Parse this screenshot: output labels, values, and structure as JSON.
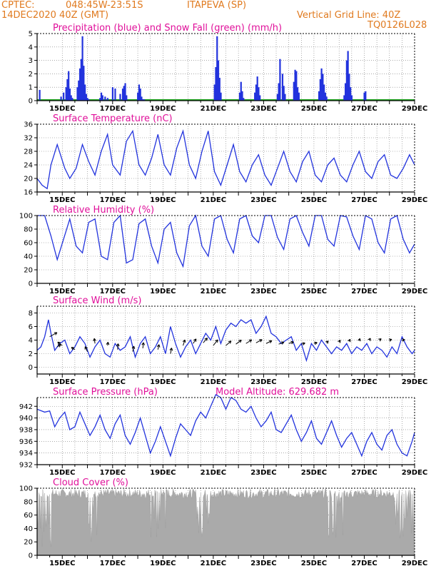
{
  "header": {
    "source": "CPTEC:",
    "coords": "048:45W-23:51S",
    "station": "ITAPEVA (SP)",
    "run": "14DEC2020 40Z (GMT)",
    "grid_note": "Vertical Grid Line: 40Z",
    "model": "TQ0126L028"
  },
  "colors": {
    "series": "#2233dd",
    "snow": "#22aa22",
    "cloud": "#aaaaaa",
    "title": "#e0109a",
    "header": "#e07a1f"
  },
  "x_axis": {
    "start": "14DEC",
    "end": "29DEC",
    "ticks": [
      "15DEC",
      "17DEC",
      "19DEC",
      "21DEC",
      "23DEC",
      "25DEC",
      "27DEC",
      "29DEC"
    ]
  },
  "chart_data": [
    {
      "id": "precip",
      "type": "bar",
      "title": "Precipitation (blue) and Snow Fall (green) (mm/h)",
      "ylim": [
        0,
        5
      ],
      "yticks": [
        "0",
        "1",
        "2",
        "3",
        "4",
        "5"
      ],
      "x_unit": "days since 14DEC 00Z (approx)",
      "x": [
        0.1,
        0.95,
        1.05,
        1.15,
        1.2,
        1.25,
        1.3,
        1.35,
        1.4,
        1.6,
        1.65,
        1.7,
        1.75,
        1.8,
        1.85,
        1.9,
        1.95,
        2.0,
        2.05,
        2.5,
        2.55,
        2.6,
        2.7,
        2.8,
        3.0,
        3.1,
        3.3,
        3.4,
        3.45,
        3.5,
        3.55,
        4.0,
        4.05,
        4.1,
        4.15,
        4.2,
        4.25,
        7.05,
        7.1,
        7.15,
        7.2,
        7.25,
        7.3,
        8.05,
        8.1,
        8.15,
        8.2,
        8.65,
        8.7,
        8.75,
        8.8,
        8.85,
        9.55,
        9.6,
        9.65,
        9.75,
        9.8,
        9.85,
        10.2,
        10.25,
        10.3,
        10.35,
        10.4,
        11.2,
        11.25,
        11.3,
        11.35,
        11.4,
        11.45,
        11.5,
        12.2,
        12.25,
        12.3,
        12.35,
        12.4,
        12.45,
        12.5,
        13.0,
        13.05
      ],
      "values": [
        0.8,
        0.3,
        0.6,
        1.0,
        1.6,
        2.2,
        0.9,
        0.4,
        0.2,
        1.0,
        1.5,
        2.4,
        3.1,
        4.8,
        2.6,
        1.2,
        0.5,
        0.2,
        0.1,
        0.2,
        0.6,
        0.4,
        0.3,
        0.2,
        1.0,
        0.9,
        0.5,
        0.9,
        1.1,
        1.3,
        0.4,
        0.6,
        1.2,
        0.9,
        0.3,
        0.1,
        0.1,
        1.2,
        2.5,
        4.8,
        3.0,
        1.7,
        0.6,
        0.6,
        1.4,
        0.7,
        0.2,
        0.6,
        1.2,
        1.8,
        1.0,
        0.4,
        0.5,
        1.3,
        3.1,
        2.0,
        1.1,
        0.5,
        1.4,
        2.3,
        2.2,
        1.0,
        0.6,
        0.7,
        1.6,
        2.4,
        2.0,
        1.2,
        0.6,
        0.3,
        0.4,
        1.3,
        3.0,
        3.7,
        2.0,
        1.0,
        0.4,
        0.6,
        0.7
      ],
      "snow": 0
    },
    {
      "id": "temp",
      "type": "line",
      "title": "Surface Temperature (nC)",
      "ylim": [
        16,
        36
      ],
      "yticks": [
        "16",
        "20",
        "24",
        "28",
        "32",
        "36"
      ],
      "x_unit": "days since 14DEC 00Z (approx)",
      "x": [
        0,
        0.2,
        0.4,
        0.55,
        0.8,
        1.1,
        1.3,
        1.55,
        1.8,
        2.05,
        2.3,
        2.55,
        2.8,
        3.0,
        3.3,
        3.55,
        3.8,
        4.05,
        4.3,
        4.55,
        4.8,
        5.05,
        5.3,
        5.55,
        5.8,
        6.05,
        6.3,
        6.55,
        6.8,
        7.05,
        7.3,
        7.55,
        7.8,
        8.05,
        8.3,
        8.55,
        8.8,
        9.05,
        9.3,
        9.55,
        9.8,
        10.05,
        10.3,
        10.55,
        10.8,
        11.05,
        11.3,
        11.55,
        11.8,
        12.05,
        12.3,
        12.55,
        12.8,
        13.05,
        13.3,
        13.55,
        13.8,
        14.05,
        14.3,
        14.55,
        14.8,
        15.0
      ],
      "values": [
        20,
        18,
        17,
        24,
        30,
        23,
        20,
        23,
        30,
        25,
        21,
        28,
        33,
        24,
        21,
        31,
        34,
        24,
        21,
        26,
        33,
        24,
        21,
        29,
        34,
        24,
        20,
        28,
        34,
        22,
        18,
        24,
        30,
        22,
        19,
        24,
        27,
        21,
        18,
        23,
        28,
        22,
        19,
        25,
        28,
        21,
        19,
        24,
        26,
        21,
        19,
        24,
        28,
        22,
        20,
        25,
        27,
        21,
        20,
        23,
        27,
        24
      ]
    },
    {
      "id": "rh",
      "type": "line",
      "title": "Relative Humidity (%)",
      "ylim": [
        0,
        100
      ],
      "yticks": [
        "0",
        "20",
        "40",
        "60",
        "80",
        "100"
      ],
      "x_unit": "days since 14DEC 00Z (approx)",
      "x": [
        0,
        0.3,
        0.55,
        0.8,
        1.05,
        1.3,
        1.55,
        1.8,
        2.05,
        2.3,
        2.55,
        2.8,
        3.05,
        3.3,
        3.55,
        3.8,
        4.05,
        4.3,
        4.55,
        4.8,
        5.05,
        5.3,
        5.55,
        5.8,
        6.05,
        6.3,
        6.55,
        6.8,
        7.05,
        7.3,
        7.55,
        7.8,
        8.05,
        8.3,
        8.55,
        8.8,
        9.05,
        9.3,
        9.55,
        9.8,
        10.05,
        10.3,
        10.55,
        10.8,
        11.05,
        11.3,
        11.55,
        11.8,
        12.05,
        12.3,
        12.55,
        12.8,
        13.05,
        13.3,
        13.55,
        13.8,
        14.05,
        14.3,
        14.55,
        14.8,
        15.0
      ],
      "values": [
        100,
        100,
        70,
        35,
        65,
        95,
        55,
        45,
        90,
        95,
        40,
        35,
        90,
        100,
        30,
        35,
        88,
        95,
        55,
        30,
        80,
        90,
        45,
        25,
        85,
        100,
        55,
        40,
        95,
        100,
        65,
        45,
        95,
        100,
        70,
        60,
        100,
        100,
        68,
        50,
        95,
        100,
        75,
        55,
        100,
        100,
        65,
        55,
        100,
        98,
        70,
        50,
        100,
        95,
        60,
        45,
        95,
        100,
        65,
        45,
        58
      ]
    },
    {
      "id": "wind",
      "type": "line",
      "title": "Surface Wind (m/s)",
      "ylim": [
        -1,
        9
      ],
      "yticks": [
        "0",
        "2",
        "4",
        "6",
        "8"
      ],
      "x_unit": "days since 14DEC 00Z (approx)",
      "x": [
        0,
        0.15,
        0.3,
        0.45,
        0.55,
        0.7,
        0.9,
        1.1,
        1.3,
        1.5,
        1.7,
        1.9,
        2.1,
        2.3,
        2.5,
        2.7,
        2.9,
        3.1,
        3.3,
        3.5,
        3.7,
        3.9,
        4.1,
        4.3,
        4.5,
        4.7,
        4.9,
        5.1,
        5.3,
        5.5,
        5.7,
        5.9,
        6.1,
        6.3,
        6.5,
        6.7,
        6.9,
        7.1,
        7.3,
        7.5,
        7.7,
        7.9,
        8.1,
        8.3,
        8.5,
        8.7,
        8.9,
        9.1,
        9.3,
        9.5,
        9.7,
        9.9,
        10.1,
        10.3,
        10.5,
        10.7,
        10.9,
        11.1,
        11.3,
        11.5,
        11.7,
        11.9,
        12.1,
        12.3,
        12.5,
        12.7,
        12.9,
        13.1,
        13.3,
        13.5,
        13.7,
        13.9,
        14.1,
        14.3,
        14.5,
        14.7,
        14.9,
        15.0
      ],
      "values": [
        2.5,
        3.0,
        4.5,
        7.0,
        5.0,
        2.5,
        3.5,
        4.0,
        2.0,
        3.0,
        4.5,
        3.5,
        1.5,
        3.0,
        4.0,
        2.0,
        1.5,
        3.5,
        2.5,
        3.0,
        4.5,
        1.5,
        3.5,
        4.5,
        2.0,
        3.0,
        4.5,
        2.0,
        6.0,
        3.5,
        1.5,
        3.0,
        4.0,
        2.0,
        3.5,
        5.0,
        4.0,
        6.0,
        3.5,
        5.5,
        6.5,
        6.0,
        7.0,
        6.5,
        7.0,
        5.0,
        6.0,
        7.5,
        5.0,
        4.5,
        3.5,
        4.0,
        4.5,
        2.5,
        3.5,
        1.0,
        3.5,
        2.5,
        4.0,
        3.0,
        2.0,
        3.0,
        2.5,
        3.5,
        2.0,
        3.0,
        2.5,
        3.5,
        2.0,
        3.0,
        2.5,
        1.5,
        3.0,
        2.0,
        4.5,
        3.0,
        2.0,
        2.5
      ],
      "arrows": [
        [
          0.5,
          4.5,
          3.2,
          1.8
        ],
        [
          0.8,
          3.0,
          1.5,
          1.0
        ],
        [
          1.0,
          3.2,
          -2.0,
          1.5
        ],
        [
          1.5,
          2.6,
          -1.5,
          1.0
        ],
        [
          2.0,
          2.3,
          -1.0,
          2.2
        ],
        [
          2.3,
          3.5,
          -0.3,
          2.2
        ],
        [
          2.8,
          3.2,
          0.2,
          1.5
        ],
        [
          3.2,
          2.6,
          0.2,
          2.6
        ],
        [
          3.8,
          2.3,
          0.5,
          2.4
        ],
        [
          4.2,
          2.8,
          0.3,
          2.5
        ],
        [
          4.8,
          2.6,
          0.5,
          2.2
        ],
        [
          5.3,
          2.0,
          0.5,
          2.5
        ],
        [
          5.8,
          3.2,
          0.8,
          2.5
        ],
        [
          6.2,
          3.5,
          1.3,
          2.0
        ],
        [
          6.6,
          3.6,
          1.8,
          2.1
        ],
        [
          7.0,
          3.2,
          2.0,
          2.5
        ],
        [
          7.5,
          3.2,
          2.3,
          2.0
        ],
        [
          7.9,
          3.4,
          2.4,
          1.8
        ],
        [
          8.3,
          3.5,
          2.5,
          1.6
        ],
        [
          8.7,
          3.6,
          2.6,
          1.4
        ],
        [
          9.1,
          3.5,
          2.5,
          1.2
        ],
        [
          9.6,
          3.4,
          2.3,
          0.9
        ],
        [
          10.0,
          3.5,
          2.1,
          0.7
        ],
        [
          10.5,
          3.4,
          1.6,
          0.5
        ],
        [
          11.0,
          3.5,
          1.4,
          0.4
        ],
        [
          11.5,
          3.6,
          0.8,
          0.8
        ],
        [
          12.0,
          3.7,
          0.5,
          0.9
        ],
        [
          12.4,
          3.8,
          0.4,
          1.0
        ],
        [
          12.8,
          3.9,
          0.3,
          1.0
        ],
        [
          13.2,
          4.0,
          0.5,
          0.8
        ],
        [
          13.6,
          4.0,
          0.8,
          0.6
        ],
        [
          14.0,
          4.0,
          1.0,
          0.3
        ],
        [
          14.5,
          4.0,
          1.2,
          0.2
        ]
      ]
    },
    {
      "id": "pres",
      "type": "line",
      "title": "Surface Pressure (hPa)",
      "subtitle": "Model Altitude: 629.682 m",
      "ylim": [
        932,
        943.5
      ],
      "yticks": [
        "932",
        "934",
        "936",
        "938",
        "940",
        "942"
      ],
      "x_unit": "days since 14DEC 00Z (approx)",
      "x": [
        0,
        0.3,
        0.5,
        0.7,
        0.9,
        1.1,
        1.3,
        1.5,
        1.7,
        1.9,
        2.1,
        2.3,
        2.5,
        2.7,
        2.9,
        3.1,
        3.3,
        3.5,
        3.7,
        3.9,
        4.1,
        4.3,
        4.5,
        4.7,
        4.9,
        5.1,
        5.3,
        5.5,
        5.7,
        5.9,
        6.1,
        6.3,
        6.5,
        6.7,
        6.9,
        7.1,
        7.3,
        7.5,
        7.7,
        7.9,
        8.1,
        8.3,
        8.5,
        8.7,
        8.9,
        9.1,
        9.3,
        9.5,
        9.7,
        9.9,
        10.1,
        10.3,
        10.5,
        10.7,
        10.9,
        11.1,
        11.3,
        11.5,
        11.7,
        11.9,
        12.1,
        12.3,
        12.5,
        12.7,
        12.9,
        13.1,
        13.3,
        13.5,
        13.7,
        13.9,
        14.1,
        14.3,
        14.5,
        14.7,
        14.9,
        15.0
      ],
      "values": [
        941.5,
        941.0,
        941.2,
        938.5,
        940.0,
        941.0,
        938.0,
        938.5,
        941.0,
        939.0,
        937.0,
        938.5,
        940.5,
        938.0,
        936.5,
        939.0,
        940.5,
        937.0,
        935.5,
        937.5,
        940.0,
        937.0,
        934.0,
        936.0,
        938.5,
        936.0,
        933.5,
        936.5,
        939.0,
        938.0,
        937.0,
        939.5,
        941.0,
        940.0,
        942.0,
        944.0,
        943.5,
        941.5,
        943.5,
        943.0,
        941.5,
        941.0,
        942.0,
        940.0,
        938.5,
        939.5,
        941.0,
        938.0,
        937.5,
        939.0,
        940.5,
        938.0,
        936.0,
        937.5,
        939.5,
        936.5,
        935.5,
        937.5,
        939.5,
        937.0,
        935.0,
        936.5,
        937.5,
        935.5,
        933.5,
        936.0,
        937.5,
        935.5,
        934.5,
        937.0,
        938.0,
        935.5,
        934.0,
        933.5,
        936.0,
        937.5
      ]
    },
    {
      "id": "cloud",
      "type": "area",
      "title": "Cloud Cover (%)",
      "ylim": [
        0,
        100
      ],
      "yticks": [
        "0",
        "20",
        "40",
        "60",
        "80",
        "100"
      ]
    }
  ]
}
